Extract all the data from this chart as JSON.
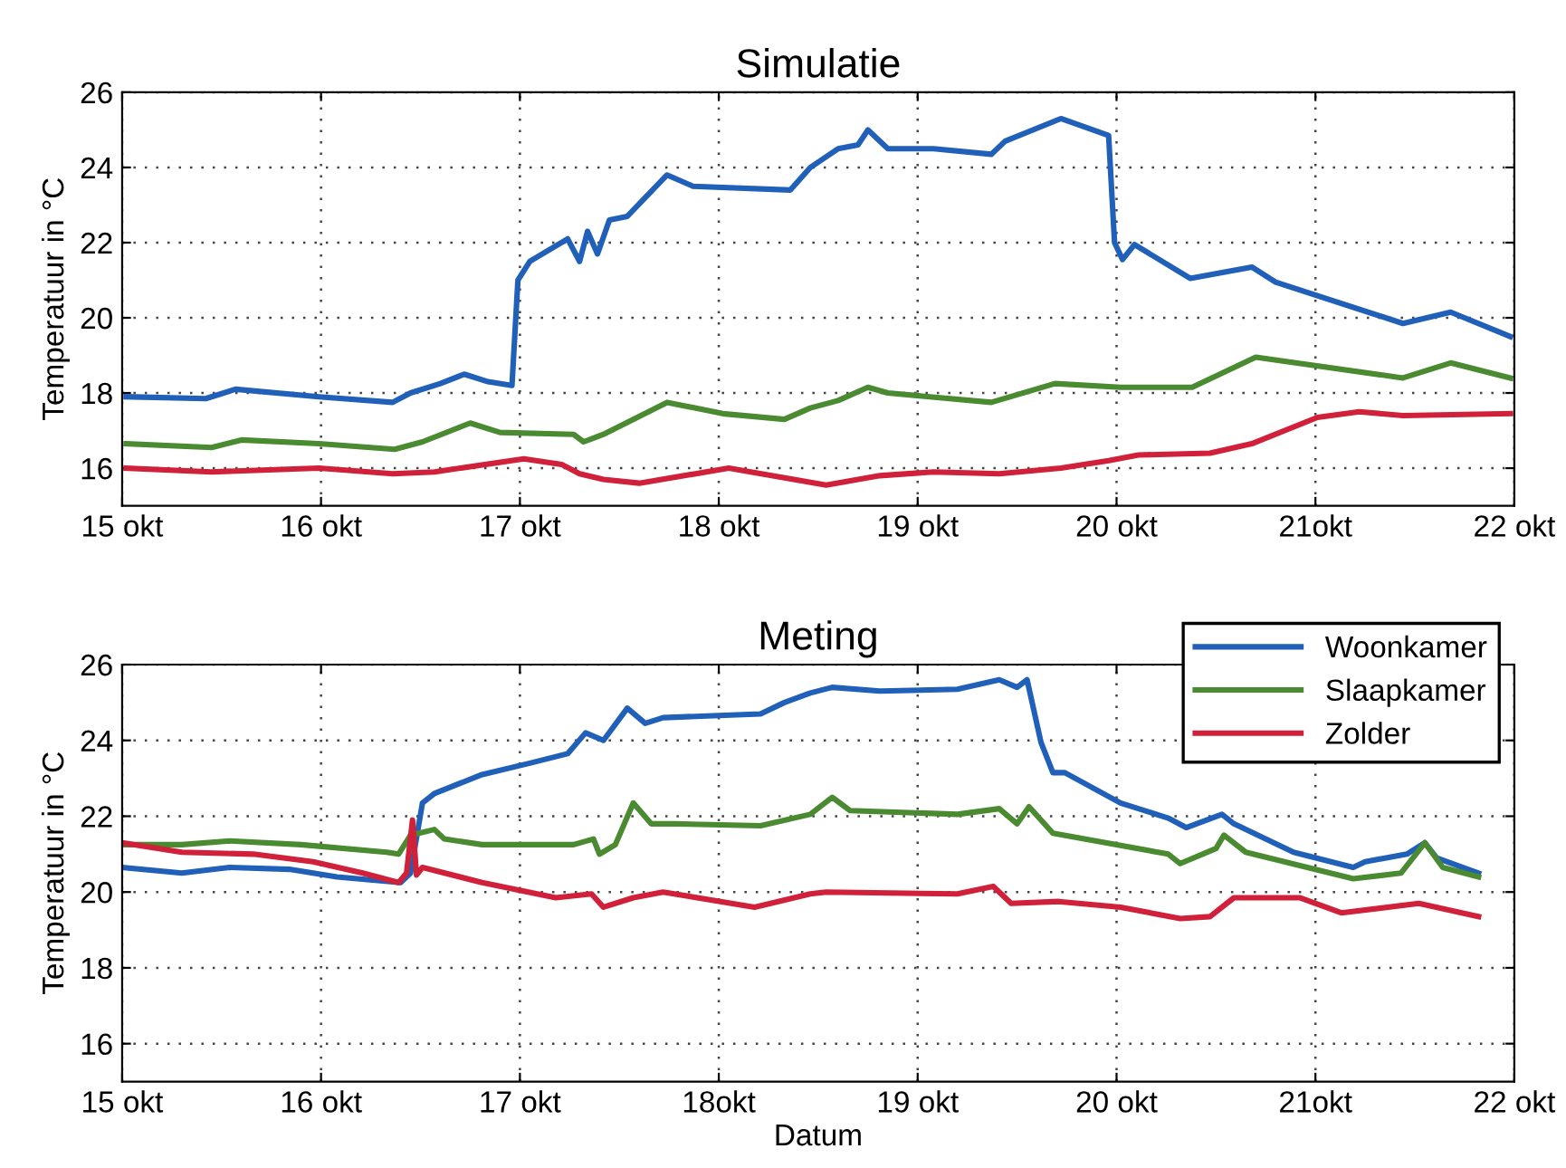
{
  "chart_data": [
    {
      "type": "line",
      "title": "Simulatie",
      "ylabel": "Temperatuur in °C",
      "xlim": [
        15,
        22
      ],
      "ylim": [
        15,
        26
      ],
      "yticks": [
        16,
        18,
        20,
        22,
        24,
        26
      ],
      "xticks": [
        {
          "value": 15,
          "label": "15 okt"
        },
        {
          "value": 16,
          "label": "16 okt"
        },
        {
          "value": 17,
          "label": "17 okt"
        },
        {
          "value": 18,
          "label": "18 okt"
        },
        {
          "value": 19,
          "label": "19 okt"
        },
        {
          "value": 20,
          "label": "20 okt"
        },
        {
          "value": 21,
          "label": "21okt"
        },
        {
          "value": 22,
          "label": "22 okt"
        }
      ],
      "grid": true,
      "legend": false,
      "line_style": "solid",
      "marker": "none",
      "series": [
        {
          "color": "#2060b8",
          "x": [
            15.02,
            15.42,
            15.57,
            15.99,
            16.36,
            16.45,
            16.6,
            16.72,
            16.84,
            16.96,
            16.99,
            17.05,
            17.24,
            17.3,
            17.34,
            17.39,
            17.45,
            17.54,
            17.74,
            17.87,
            18.36,
            18.46,
            18.6,
            18.7,
            18.75,
            18.85,
            19.08,
            19.37,
            19.44,
            19.72,
            19.96,
            19.99,
            20.03,
            20.09,
            20.37,
            20.68,
            20.8,
            21.44,
            21.68,
            21.98
          ],
          "values": [
            17.9,
            17.85,
            18.1,
            17.9,
            17.75,
            18.0,
            18.25,
            18.5,
            18.3,
            18.2,
            21.0,
            21.5,
            22.1,
            21.5,
            22.3,
            21.7,
            22.6,
            22.7,
            23.8,
            23.5,
            23.4,
            24.0,
            24.5,
            24.6,
            25.0,
            24.5,
            24.5,
            24.35,
            24.7,
            25.3,
            24.85,
            22.0,
            21.55,
            21.95,
            21.05,
            21.35,
            20.95,
            19.85,
            20.15,
            19.5
          ]
        },
        {
          "color": "#4a8a30",
          "x": [
            15.02,
            15.45,
            15.6,
            15.99,
            16.37,
            16.51,
            16.75,
            16.9,
            17.27,
            17.32,
            17.37,
            17.42,
            17.74,
            18.02,
            18.33,
            18.46,
            18.6,
            18.75,
            18.85,
            19.37,
            19.69,
            20.02,
            20.38,
            20.7,
            21.44,
            21.68,
            21.98
          ],
          "values": [
            16.65,
            16.55,
            16.75,
            16.65,
            16.5,
            16.7,
            17.2,
            16.95,
            16.9,
            16.7,
            16.8,
            16.9,
            17.75,
            17.45,
            17.3,
            17.6,
            17.8,
            18.15,
            18.0,
            17.75,
            18.25,
            18.15,
            18.15,
            18.95,
            18.4,
            18.8,
            18.4
          ]
        },
        {
          "color": "#d0203a",
          "x": [
            15.02,
            15.45,
            15.99,
            16.36,
            16.57,
            17.02,
            17.21,
            17.3,
            17.42,
            17.6,
            18.05,
            18.54,
            18.81,
            19.08,
            19.41,
            19.72,
            19.96,
            20.11,
            20.47,
            20.68,
            21.01,
            21.22,
            21.44,
            21.98
          ],
          "values": [
            16.0,
            15.9,
            16.0,
            15.85,
            15.9,
            16.25,
            16.1,
            15.85,
            15.7,
            15.6,
            16.0,
            15.55,
            15.8,
            15.9,
            15.85,
            16.0,
            16.2,
            16.35,
            16.4,
            16.65,
            17.35,
            17.5,
            17.4,
            17.45
          ]
        }
      ]
    },
    {
      "type": "line",
      "title": "Meting",
      "xlabel": "Datum",
      "ylabel": "Temperatuur in °C",
      "xlim": [
        15,
        22
      ],
      "ylim": [
        15,
        26
      ],
      "yticks": [
        16,
        18,
        20,
        22,
        24,
        26
      ],
      "xticks": [
        {
          "value": 15,
          "label": "15 okt"
        },
        {
          "value": 16,
          "label": "16 okt"
        },
        {
          "value": 17,
          "label": "17 okt"
        },
        {
          "value": 18,
          "label": "18okt"
        },
        {
          "value": 19,
          "label": "19 okt"
        },
        {
          "value": 20,
          "label": "20 okt"
        },
        {
          "value": 21,
          "label": "21okt"
        },
        {
          "value": 22,
          "label": "22 okt"
        }
      ],
      "grid": true,
      "legend": "top right",
      "line_style": "solid",
      "marker": "none",
      "series": [
        {
          "name": "Woonkamer",
          "color": "#2060b8",
          "x": [
            15.0,
            15.3,
            15.54,
            15.84,
            16.08,
            16.4,
            16.45,
            16.51,
            16.57,
            16.81,
            17.05,
            17.24,
            17.33,
            17.42,
            17.54,
            17.63,
            17.72,
            18.21,
            18.33,
            18.46,
            18.57,
            18.81,
            19.2,
            19.41,
            19.5,
            19.55,
            19.62,
            19.68,
            19.74,
            20.02,
            20.26,
            20.35,
            20.53,
            20.59,
            20.89,
            21.19,
            21.25,
            21.46,
            21.55,
            21.61,
            21.82
          ],
          "values": [
            20.65,
            20.5,
            20.65,
            20.6,
            20.4,
            20.25,
            20.5,
            22.35,
            22.6,
            23.1,
            23.4,
            23.65,
            24.2,
            24.0,
            24.85,
            24.45,
            24.6,
            24.7,
            25.0,
            25.25,
            25.4,
            25.3,
            25.35,
            25.6,
            25.4,
            25.6,
            23.95,
            23.15,
            23.15,
            22.35,
            21.95,
            21.7,
            22.05,
            21.8,
            21.05,
            20.65,
            20.8,
            21.0,
            21.3,
            20.9,
            20.5
          ]
        },
        {
          "name": "Slaapkamer",
          "color": "#4a8a30",
          "x": [
            15.0,
            15.3,
            15.54,
            15.9,
            16.33,
            16.39,
            16.45,
            16.57,
            16.62,
            16.81,
            17.27,
            17.37,
            17.4,
            17.48,
            17.57,
            17.66,
            17.78,
            18.21,
            18.46,
            18.57,
            18.66,
            19.2,
            19.41,
            19.5,
            19.56,
            19.68,
            20.26,
            20.32,
            20.5,
            20.54,
            20.65,
            21.19,
            21.43,
            21.55,
            21.64,
            21.82
          ],
          "values": [
            21.25,
            21.25,
            21.35,
            21.25,
            21.05,
            21.0,
            21.5,
            21.65,
            21.4,
            21.25,
            21.25,
            21.4,
            21.0,
            21.25,
            22.35,
            21.8,
            21.8,
            21.75,
            22.05,
            22.5,
            22.15,
            22.05,
            22.2,
            21.8,
            22.25,
            21.55,
            21.0,
            20.75,
            21.15,
            21.5,
            21.05,
            20.35,
            20.5,
            21.3,
            20.65,
            20.4
          ]
        },
        {
          "name": "Zolder",
          "color": "#d0203a",
          "x": [
            15.0,
            15.3,
            15.66,
            15.96,
            16.21,
            16.39,
            16.43,
            16.46,
            16.48,
            16.51,
            16.81,
            17.18,
            17.36,
            17.42,
            17.57,
            17.72,
            18.18,
            18.46,
            18.54,
            19.2,
            19.38,
            19.47,
            19.71,
            20.02,
            20.32,
            20.47,
            20.59,
            20.92,
            21.13,
            21.52,
            21.82
          ],
          "values": [
            21.3,
            21.05,
            21.0,
            20.8,
            20.5,
            20.25,
            20.5,
            21.9,
            20.45,
            20.65,
            20.25,
            19.85,
            19.95,
            19.6,
            19.85,
            20.0,
            19.6,
            19.95,
            20.0,
            19.95,
            20.15,
            19.7,
            19.75,
            19.6,
            19.3,
            19.35,
            19.85,
            19.85,
            19.45,
            19.7,
            19.35
          ]
        }
      ]
    }
  ]
}
